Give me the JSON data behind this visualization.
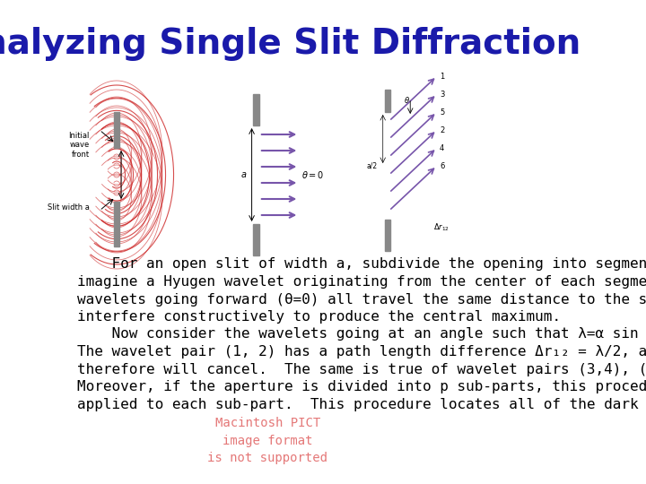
{
  "title": "Analyzing Single Slit Diffraction",
  "title_color": "#1a1aaa",
  "title_fontsize": 28,
  "bg_color": "#ffffff",
  "para1_indent": "    For an open slit of width ",
  "para1_a": "a",
  "para1_rest": ", subdivide the opening into segments and\nimagine a Hyugen wavelet originating from the center of each segment.  The\nwavelets going forward (θ=0) all travel the same distance to the screen and\ninterfere constructively to produce the central maximum.",
  "para2_indent": "    Now consider the wavelets going at an angle such that λ=α sin θ≅αθ.\nThe wavelet pair (1, 2) has a path length difference Δr₁₂ = λ/2, and\ntherefore will cancel.  The same is true of wavelet pairs (3,4), (5,6), etc.\nMoreover, if the aperture is divided into p sub-parts, this procedure can be\napplied to each sub-part.  This procedure locates all of the dark fringes.",
  "watermark_line1": "Macintosh PICT",
  "watermark_line2": "image format",
  "watermark_line3": "is not supported",
  "watermark_color": "#e06060",
  "body_fontsize": 11.5,
  "body_color": "#000000",
  "slit_color": "#888888",
  "arrow_color_purple": "#7755aa",
  "arrow_color_red": "#cc2222",
  "line_color_dark": "#333333"
}
